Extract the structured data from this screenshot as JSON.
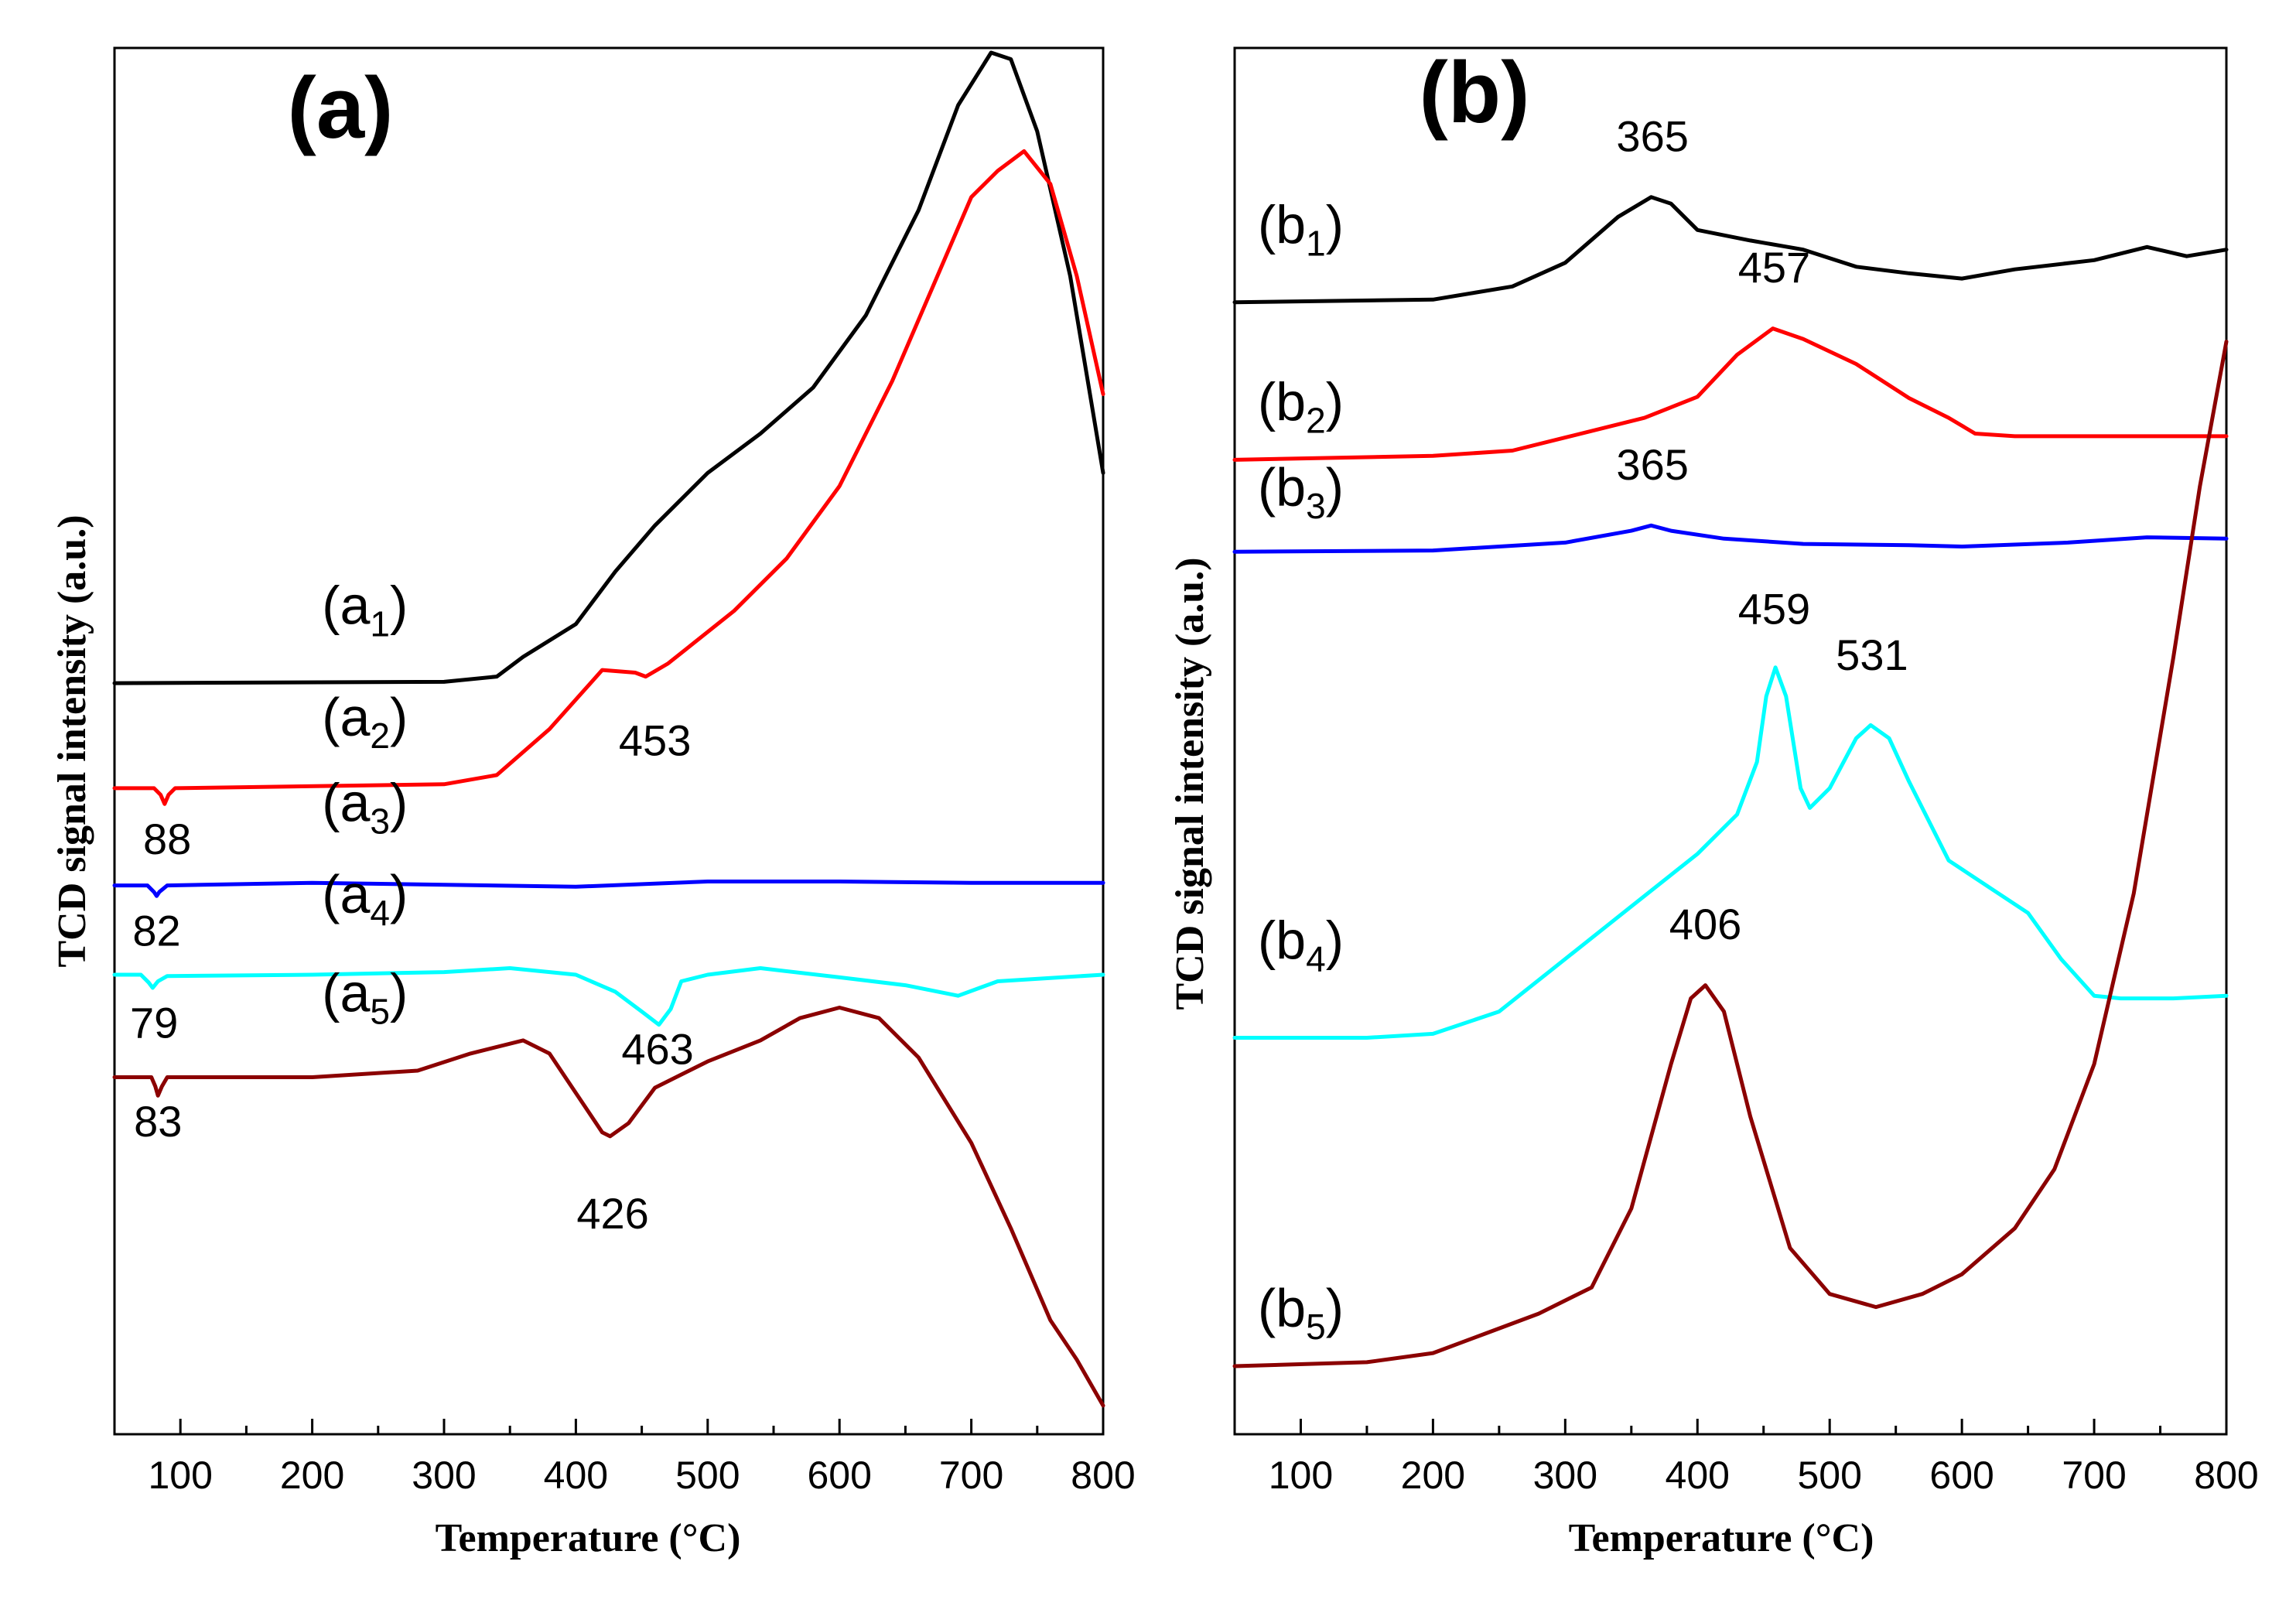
{
  "chart_data": [
    {
      "type": "line",
      "panel_label": "(a)",
      "xlabel": "Temperature (°C)",
      "ylabel": "TCD signal intensity (a.u.)",
      "xlim": [
        50,
        800
      ],
      "ylim": [
        0,
        1
      ],
      "grid": false,
      "x_ticks": [
        100,
        200,
        300,
        400,
        500,
        600,
        700,
        800
      ],
      "series": [
        {
          "name": "(a1)",
          "color": "#000000",
          "label_at": [
            240,
            0.585
          ],
          "points": [
            [
              50,
              0.54
            ],
            [
              300,
              0.541
            ],
            [
              340,
              0.545
            ],
            [
              360,
              0.56
            ],
            [
              400,
              0.585
            ],
            [
              430,
              0.625
            ],
            [
              460,
              0.66
            ],
            [
              500,
              0.7
            ],
            [
              540,
              0.73
            ],
            [
              580,
              0.765
            ],
            [
              620,
              0.82
            ],
            [
              660,
              0.9
            ],
            [
              690,
              0.98
            ],
            [
              715,
              1.02
            ],
            [
              730,
              1.015
            ],
            [
              750,
              0.96
            ],
            [
              775,
              0.85
            ],
            [
              790,
              0.76
            ],
            [
              800,
              0.7
            ]
          ]
        },
        {
          "name": "(a2)",
          "color": "#ff0000",
          "label_at": [
            240,
            0.5
          ],
          "points": [
            [
              50,
              0.46
            ],
            [
              80,
              0.46
            ],
            [
              85,
              0.455
            ],
            [
              88,
              0.448
            ],
            [
              91,
              0.455
            ],
            [
              96,
              0.46
            ],
            [
              300,
              0.463
            ],
            [
              340,
              0.47
            ],
            [
              380,
              0.505
            ],
            [
              420,
              0.55
            ],
            [
              445,
              0.548
            ],
            [
              453,
              0.545
            ],
            [
              470,
              0.555
            ],
            [
              520,
              0.595
            ],
            [
              560,
              0.635
            ],
            [
              600,
              0.69
            ],
            [
              640,
              0.77
            ],
            [
              670,
              0.84
            ],
            [
              700,
              0.91
            ],
            [
              720,
              0.93
            ],
            [
              740,
              0.945
            ],
            [
              760,
              0.92
            ],
            [
              780,
              0.85
            ],
            [
              800,
              0.76
            ]
          ]
        },
        {
          "name": "(a3)",
          "color": "#0000ff",
          "label_at": [
            240,
            0.435
          ],
          "points": [
            [
              50,
              0.386
            ],
            [
              75,
              0.386
            ],
            [
              80,
              0.381
            ],
            [
              82,
              0.378
            ],
            [
              84,
              0.381
            ],
            [
              90,
              0.386
            ],
            [
              200,
              0.388
            ],
            [
              400,
              0.385
            ],
            [
              500,
              0.389
            ],
            [
              600,
              0.389
            ],
            [
              700,
              0.388
            ],
            [
              800,
              0.388
            ]
          ]
        },
        {
          "name": "(a4)",
          "color": "#00ffff",
          "label_at": [
            240,
            0.365
          ],
          "points": [
            [
              50,
              0.318
            ],
            [
              70,
              0.318
            ],
            [
              76,
              0.312
            ],
            [
              79,
              0.308
            ],
            [
              83,
              0.313
            ],
            [
              90,
              0.317
            ],
            [
              200,
              0.318
            ],
            [
              300,
              0.32
            ],
            [
              350,
              0.323
            ],
            [
              400,
              0.318
            ],
            [
              430,
              0.305
            ],
            [
              450,
              0.29
            ],
            [
              463,
              0.28
            ],
            [
              472,
              0.292
            ],
            [
              480,
              0.313
            ],
            [
              500,
              0.318
            ],
            [
              540,
              0.323
            ],
            [
              600,
              0.316
            ],
            [
              650,
              0.31
            ],
            [
              690,
              0.302
            ],
            [
              720,
              0.313
            ],
            [
              800,
              0.318
            ]
          ]
        },
        {
          "name": "(a5)",
          "color": "#8b0000",
          "label_at": [
            240,
            0.29
          ],
          "points": [
            [
              50,
              0.24
            ],
            [
              78,
              0.24
            ],
            [
              81,
              0.233
            ],
            [
              83,
              0.226
            ],
            [
              86,
              0.233
            ],
            [
              90,
              0.24
            ],
            [
              200,
              0.24
            ],
            [
              280,
              0.245
            ],
            [
              320,
              0.258
            ],
            [
              360,
              0.268
            ],
            [
              380,
              0.258
            ],
            [
              400,
              0.228
            ],
            [
              420,
              0.198
            ],
            [
              426,
              0.195
            ],
            [
              440,
              0.205
            ],
            [
              460,
              0.232
            ],
            [
              500,
              0.252
            ],
            [
              540,
              0.268
            ],
            [
              570,
              0.285
            ],
            [
              600,
              0.293
            ],
            [
              630,
              0.285
            ],
            [
              660,
              0.255
            ],
            [
              700,
              0.19
            ],
            [
              730,
              0.125
            ],
            [
              760,
              0.055
            ],
            [
              780,
              0.025
            ],
            [
              800,
              -0.01
            ]
          ]
        }
      ],
      "annotations": [
        {
          "text": "453",
          "x": 460,
          "y": 0.485
        },
        {
          "text": "88",
          "x": 90,
          "y": 0.41
        },
        {
          "text": "82",
          "x": 82,
          "y": 0.34
        },
        {
          "text": "79",
          "x": 80,
          "y": 0.27
        },
        {
          "text": "463",
          "x": 462,
          "y": 0.25
        },
        {
          "text": "83",
          "x": 83,
          "y": 0.195
        },
        {
          "text": "426",
          "x": 428,
          "y": 0.125
        }
      ]
    },
    {
      "type": "line",
      "panel_label": "(b)",
      "xlabel": "Temperature (°C)",
      "ylabel": "TCD signal intensity (a.u.)",
      "xlim": [
        50,
        800
      ],
      "ylim": [
        0,
        1
      ],
      "grid": false,
      "x_ticks": [
        100,
        200,
        300,
        400,
        500,
        600,
        700,
        800
      ],
      "series": [
        {
          "name": "(b1)",
          "color": "#000000",
          "label_at": [
            100,
            0.875
          ],
          "points": [
            [
              50,
              0.83
            ],
            [
              200,
              0.832
            ],
            [
              260,
              0.842
            ],
            [
              300,
              0.86
            ],
            [
              340,
              0.895
            ],
            [
              365,
              0.91
            ],
            [
              380,
              0.905
            ],
            [
              400,
              0.885
            ],
            [
              440,
              0.877
            ],
            [
              480,
              0.87
            ],
            [
              520,
              0.857
            ],
            [
              560,
              0.852
            ],
            [
              600,
              0.848
            ],
            [
              640,
              0.855
            ],
            [
              700,
              0.862
            ],
            [
              740,
              0.872
            ],
            [
              770,
              0.865
            ],
            [
              800,
              0.87
            ]
          ]
        },
        {
          "name": "(b2)",
          "color": "#ff0000",
          "label_at": [
            100,
            0.74
          ],
          "points": [
            [
              50,
              0.71
            ],
            [
              200,
              0.713
            ],
            [
              260,
              0.717
            ],
            [
              300,
              0.727
            ],
            [
              360,
              0.742
            ],
            [
              400,
              0.758
            ],
            [
              430,
              0.79
            ],
            [
              457,
              0.81
            ],
            [
              480,
              0.802
            ],
            [
              520,
              0.783
            ],
            [
              560,
              0.757
            ],
            [
              590,
              0.742
            ],
            [
              610,
              0.73
            ],
            [
              640,
              0.728
            ],
            [
              700,
              0.728
            ],
            [
              800,
              0.728
            ]
          ]
        },
        {
          "name": "(b3)",
          "color": "#0000ff",
          "label_at": [
            100,
            0.675
          ],
          "points": [
            [
              50,
              0.64
            ],
            [
              200,
              0.641
            ],
            [
              300,
              0.647
            ],
            [
              350,
              0.656
            ],
            [
              365,
              0.66
            ],
            [
              380,
              0.656
            ],
            [
              420,
              0.65
            ],
            [
              480,
              0.646
            ],
            [
              560,
              0.645
            ],
            [
              600,
              0.644
            ],
            [
              680,
              0.647
            ],
            [
              740,
              0.651
            ],
            [
              800,
              0.65
            ]
          ]
        },
        {
          "name": "(b4)",
          "color": "#00ffff",
          "label_at": [
            100,
            0.33
          ],
          "points": [
            [
              50,
              0.27
            ],
            [
              150,
              0.27
            ],
            [
              200,
              0.273
            ],
            [
              250,
              0.29
            ],
            [
              300,
              0.33
            ],
            [
              350,
              0.37
            ],
            [
              400,
              0.41
            ],
            [
              430,
              0.44
            ],
            [
              445,
              0.48
            ],
            [
              452,
              0.53
            ],
            [
              459,
              0.552
            ],
            [
              467,
              0.53
            ],
            [
              478,
              0.46
            ],
            [
              485,
              0.445
            ],
            [
              500,
              0.46
            ],
            [
              520,
              0.498
            ],
            [
              531,
              0.508
            ],
            [
              545,
              0.498
            ],
            [
              560,
              0.465
            ],
            [
              590,
              0.405
            ],
            [
              620,
              0.385
            ],
            [
              650,
              0.365
            ],
            [
              675,
              0.33
            ],
            [
              700,
              0.302
            ],
            [
              720,
              0.3
            ],
            [
              760,
              0.3
            ],
            [
              800,
              0.302
            ]
          ]
        },
        {
          "name": "(b5)",
          "color": "#8b0000",
          "label_at": [
            100,
            0.05
          ],
          "points": [
            [
              50,
              0.02
            ],
            [
              150,
              0.023
            ],
            [
              200,
              0.03
            ],
            [
              240,
              0.045
            ],
            [
              280,
              0.06
            ],
            [
              320,
              0.08
            ],
            [
              350,
              0.14
            ],
            [
              380,
              0.25
            ],
            [
              395,
              0.3
            ],
            [
              406,
              0.31
            ],
            [
              420,
              0.29
            ],
            [
              440,
              0.21
            ],
            [
              470,
              0.11
            ],
            [
              500,
              0.075
            ],
            [
              535,
              0.065
            ],
            [
              570,
              0.075
            ],
            [
              600,
              0.09
            ],
            [
              640,
              0.125
            ],
            [
              670,
              0.17
            ],
            [
              700,
              0.25
            ],
            [
              730,
              0.38
            ],
            [
              760,
              0.56
            ],
            [
              780,
              0.69
            ],
            [
              800,
              0.8
            ]
          ]
        }
      ],
      "annotations": [
        {
          "text": "365",
          "x": 366,
          "y": 0.945
        },
        {
          "text": "457",
          "x": 458,
          "y": 0.845
        },
        {
          "text": "365",
          "x": 366,
          "y": 0.695
        },
        {
          "text": "459",
          "x": 458,
          "y": 0.585
        },
        {
          "text": "531",
          "x": 532,
          "y": 0.55
        },
        {
          "text": "406",
          "x": 406,
          "y": 0.345
        }
      ]
    }
  ]
}
